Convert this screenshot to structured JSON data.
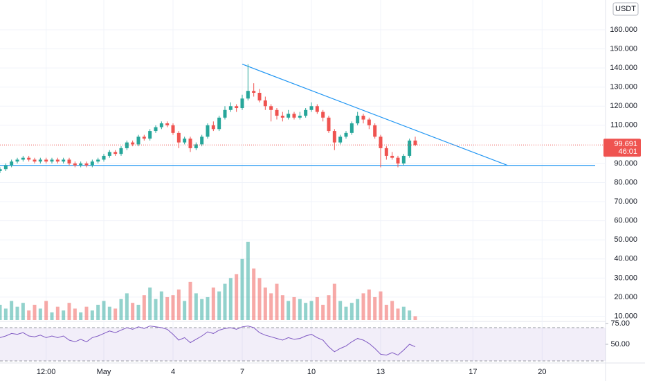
{
  "chart_data": {
    "type": "candlestick",
    "currency": "USDT",
    "up_color": "#26a69a",
    "down_color": "#ef5350",
    "x": [
      -4.5,
      -4.25,
      -4,
      -3.75,
      -3.5,
      -3.25,
      -3,
      -2.75,
      -2.5,
      -2.25,
      -2,
      -1.75,
      -1.5,
      -1.25,
      -1,
      -0.75,
      -0.5,
      -0.25,
      0,
      0.25,
      0.5,
      0.75,
      1,
      1.25,
      1.5,
      1.75,
      2,
      2.25,
      2.5,
      2.75,
      3,
      3.25,
      3.5,
      3.75,
      4,
      4.25,
      4.5,
      4.75,
      5,
      5.25,
      5.5,
      5.75,
      6,
      6.25,
      6.5,
      6.75,
      7,
      7.25,
      7.5,
      7.75,
      8,
      8.25,
      8.5,
      8.75,
      9,
      9.25,
      9.5,
      9.75,
      10,
      10.25,
      10.5,
      10.75,
      11,
      11.25,
      11.5,
      11.75,
      12,
      12.25,
      12.5,
      12.75,
      13,
      13.25,
      13.5
    ],
    "open": [
      86,
      87,
      89,
      91,
      92,
      93,
      92,
      91,
      92,
      91,
      92,
      91,
      92,
      90,
      89,
      90,
      89,
      91,
      92,
      94,
      96,
      95,
      98,
      101,
      100,
      104,
      103,
      107,
      109,
      111,
      110,
      106,
      101,
      103,
      98,
      100,
      104,
      110,
      108,
      114,
      118,
      120,
      119,
      124,
      128,
      127,
      123,
      120,
      118,
      115,
      114,
      116,
      114,
      115,
      118,
      120,
      117,
      114,
      107,
      101,
      104,
      106,
      111,
      115,
      113,
      110,
      104,
      98,
      94,
      93,
      90,
      94,
      102
    ],
    "high": [
      88,
      90,
      92,
      93,
      94,
      94,
      93,
      93,
      93,
      93,
      93,
      93,
      93,
      91,
      91,
      91,
      92,
      93,
      95,
      97,
      97,
      99,
      102,
      102,
      105,
      105,
      108,
      110,
      112,
      112,
      111,
      107,
      104,
      104,
      101,
      105,
      111,
      112,
      115,
      120,
      122,
      121,
      126,
      142,
      132,
      129,
      125,
      121,
      119,
      117,
      118,
      117,
      117,
      119,
      122,
      121,
      118,
      115,
      108,
      105,
      107,
      112,
      117,
      116,
      114,
      111,
      105,
      99,
      96,
      94,
      95,
      103,
      104
    ],
    "low": [
      85,
      86,
      88,
      90,
      91,
      91,
      90,
      90,
      90,
      90,
      90,
      90,
      89,
      88,
      88,
      88,
      88,
      90,
      91,
      93,
      94,
      94,
      97,
      99,
      99,
      102,
      102,
      106,
      108,
      109,
      105,
      98,
      100,
      96,
      97,
      99,
      103,
      107,
      107,
      113,
      117,
      117,
      118,
      123,
      125,
      122,
      118,
      112,
      113,
      112,
      113,
      113,
      113,
      114,
      117,
      116,
      112,
      106,
      97,
      100,
      103,
      105,
      110,
      111,
      108,
      103,
      88,
      92,
      92,
      88,
      89,
      93,
      99
    ],
    "close": [
      87,
      89,
      91,
      92,
      93,
      92,
      91,
      92,
      91,
      92,
      91,
      92,
      90,
      89,
      90,
      89,
      91,
      92,
      94,
      96,
      95,
      98,
      101,
      100,
      104,
      103,
      107,
      109,
      111,
      110,
      106,
      101,
      103,
      98,
      100,
      104,
      110,
      108,
      114,
      118,
      120,
      119,
      124,
      128,
      127,
      123,
      120,
      118,
      115,
      114,
      116,
      114,
      115,
      118,
      120,
      117,
      114,
      107,
      101,
      104,
      106,
      111,
      115,
      113,
      110,
      104,
      98,
      94,
      93,
      90,
      94,
      102,
      99.691
    ],
    "volume": [
      16,
      14,
      18,
      15,
      17,
      13,
      16,
      14,
      18,
      12,
      15,
      13,
      17,
      14,
      12,
      15,
      13,
      16,
      18,
      15,
      14,
      19,
      22,
      17,
      16,
      21,
      25,
      19,
      23,
      20,
      21,
      24,
      18,
      28,
      22,
      19,
      20,
      25,
      23,
      27,
      30,
      32,
      40,
      49,
      35,
      30,
      25,
      22,
      27,
      21,
      18,
      20,
      19,
      17,
      18,
      20,
      16,
      21,
      27,
      18,
      15,
      17,
      19,
      22,
      24,
      20,
      23,
      16,
      18,
      14,
      15,
      13,
      10
    ],
    "last_price": 99.691,
    "countdown": "46:01",
    "trendlines": [
      {
        "x": [
          6,
          17.5
        ],
        "y": [
          142,
          89
        ],
        "color": "#2196f3"
      },
      {
        "x": [
          -4.5,
          21.3
        ],
        "y": [
          89,
          89
        ],
        "color": "#2196f3"
      }
    ],
    "xlim": [
      -4.5,
      21.75
    ],
    "xticks": [
      {
        "value": -2.5,
        "label": "12:00"
      },
      {
        "value": 0,
        "label": "May"
      },
      {
        "value": 3,
        "label": "4"
      },
      {
        "value": 6,
        "label": "7"
      },
      {
        "value": 9,
        "label": "10"
      },
      {
        "value": 12,
        "label": "13"
      },
      {
        "value": 16,
        "label": "17"
      },
      {
        "value": 19,
        "label": "20"
      }
    ],
    "ylim": [
      8,
      175.6
    ],
    "yticks": [
      {
        "value": 160,
        "label": "160.000"
      },
      {
        "value": 150,
        "label": "150.000"
      },
      {
        "value": 140,
        "label": "140.000"
      },
      {
        "value": 130,
        "label": "130.000"
      },
      {
        "value": 120,
        "label": "120.000"
      },
      {
        "value": 110,
        "label": "110.000"
      },
      {
        "value": 90,
        "label": "90.000"
      },
      {
        "value": 80,
        "label": "80.000"
      },
      {
        "value": 70,
        "label": "70.000"
      },
      {
        "value": 60,
        "label": "60.000"
      },
      {
        "value": 50,
        "label": "50.000"
      },
      {
        "value": 40,
        "label": "40.000"
      },
      {
        "value": 30,
        "label": "30.000"
      },
      {
        "value": 20,
        "label": "20.000"
      },
      {
        "value": 10,
        "label": "10.000"
      }
    ],
    "grid": true,
    "rsi": {
      "color": "#7e57c2",
      "values": [
        58,
        60,
        63,
        62,
        64,
        60,
        59,
        61,
        58,
        60,
        58,
        60,
        55,
        53,
        56,
        53,
        58,
        60,
        63,
        66,
        64,
        67,
        70,
        68,
        71,
        69,
        72,
        71,
        70,
        68,
        62,
        55,
        58,
        52,
        56,
        60,
        65,
        63,
        67,
        69,
        70,
        68,
        71,
        72,
        70,
        64,
        61,
        59,
        57,
        55,
        58,
        56,
        57,
        60,
        62,
        58,
        55,
        47,
        41,
        45,
        48,
        53,
        57,
        55,
        51,
        45,
        38,
        37,
        40,
        37,
        43,
        50,
        47
      ],
      "ylim": [
        27.5,
        77.5
      ],
      "yticks": [
        {
          "value": 75,
          "label": "75.00"
        },
        {
          "value": 50,
          "label": "50.00"
        }
      ],
      "bands": [
        70,
        30
      ]
    }
  }
}
